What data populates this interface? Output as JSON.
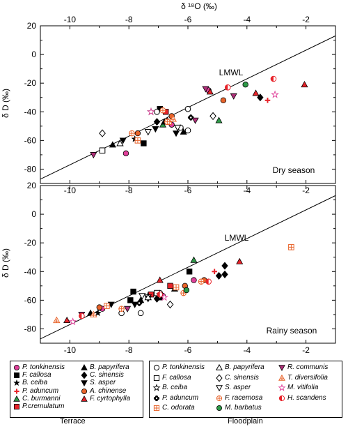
{
  "chart_data": [
    {
      "type": "scatter",
      "panel": "top",
      "xlabel": "δ ¹⁸O (‰)",
      "ylabel": "δ D (‰)",
      "xlim": [
        -11,
        -1
      ],
      "ylim": [
        -90,
        20
      ],
      "xticks": [
        "-10",
        "-8",
        "-6",
        "-4",
        "-2"
      ],
      "yticks": [
        "20",
        "0",
        "-20",
        "-40",
        "-60",
        "-80"
      ],
      "line_label": "LMWL",
      "season_label": "Dry season",
      "lmwl": {
        "slope": 10,
        "intercept": 23
      },
      "series": [
        {
          "name": "P. tonkinensis",
          "points": [
            [
              -8.1,
              -69
            ],
            [
              -6.55,
              -49
            ],
            [
              -5.3,
              -25
            ]
          ]
        },
        {
          "name": "F. callosa",
          "points": [
            [
              -7.5,
              -62
            ],
            [
              -6.95,
              -38
            ]
          ]
        },
        {
          "name": "B. ceiba",
          "points": [
            [
              -7.8,
              -59
            ]
          ]
        },
        {
          "name": "P. aduncum",
          "points": [
            [
              -3.3,
              -32
            ]
          ]
        },
        {
          "name": "C. burmanni",
          "points": [
            [
              -6.85,
              -49
            ],
            [
              -4.95,
              -46
            ]
          ]
        },
        {
          "name": "P.cremulatum",
          "points": [
            [
              -6.75,
              -40
            ]
          ]
        },
        {
          "name": "B. papyrifera",
          "points": [
            [
              -8.55,
              -63
            ],
            [
              -6.8,
              -47
            ],
            [
              -6.15,
              -54
            ]
          ]
        },
        {
          "name": "C. sinensis",
          "points": [
            [
              -7.05,
              -47
            ],
            [
              -3.55,
              -30
            ]
          ]
        },
        {
          "name": "S. asper",
          "points": [
            [
              -8.2,
              -60
            ],
            [
              -7.1,
              -52
            ],
            [
              -6.4,
              -55
            ]
          ]
        },
        {
          "name": "A. chinense",
          "points": [
            [
              -7.7,
              -55
            ],
            [
              -6.55,
              -43
            ],
            [
              -4.8,
              -32
            ]
          ]
        },
        {
          "name": "F. cyrtophylla",
          "points": [
            [
              -6.7,
              -46
            ],
            [
              -5.25,
              -26
            ],
            [
              -3.7,
              -27
            ],
            [
              -2.05,
              -21
            ]
          ]
        },
        {
          "name": "P. tonkinensis (Floodplain)",
          "points": [
            [
              -7.05,
              -40
            ],
            [
              -6.25,
              -51
            ],
            [
              -6.0,
              -38
            ],
            [
              -6.0,
              -53
            ]
          ]
        },
        {
          "name": "F. callosa (Floodplain)",
          "points": [
            [
              -8.9,
              -67
            ]
          ]
        },
        {
          "name": "B. ceiba (Floodplain)",
          "points": [
            [
              -7.25,
              -40
            ]
          ]
        },
        {
          "name": "P. aduncum (Floodplain)",
          "points": [
            [
              -5.9,
              -44
            ]
          ]
        },
        {
          "name": "C. odorata",
          "points": [
            [
              -7.7,
              -60
            ],
            [
              -6.65,
              -47
            ]
          ]
        },
        {
          "name": "B. papyrifera (Floodplain)",
          "points": [
            [
              -8.3,
              -62
            ]
          ]
        },
        {
          "name": "C. sinensis (Floodplain)",
          "points": [
            [
              -8.9,
              -55
            ],
            [
              -5.15,
              -43
            ]
          ]
        },
        {
          "name": "S. asper (Floodplain)",
          "points": [
            [
              -7.35,
              -54
            ],
            [
              -6.35,
              -51
            ]
          ]
        },
        {
          "name": "F. racemosa",
          "points": [
            [
              -7.9,
              -55
            ],
            [
              -6.85,
              -39
            ],
            [
              -6.7,
              -47
            ]
          ]
        },
        {
          "name": "M. barbatus",
          "points": [
            [
              -4.05,
              -21
            ]
          ]
        },
        {
          "name": "R. communis",
          "points": [
            [
              -9.2,
              -70
            ],
            [
              -5.4,
              -24
            ],
            [
              -5.75,
              -46
            ],
            [
              -4.45,
              -29
            ]
          ]
        },
        {
          "name": "T. diversifolia",
          "points": [
            [
              -6.5,
              -45
            ]
          ]
        },
        {
          "name": "M. vitifolia",
          "points": [
            [
              -7.25,
              -40
            ],
            [
              -3.05,
              -28
            ]
          ]
        },
        {
          "name": "H. scandens",
          "points": [
            [
              -4.65,
              -23
            ],
            [
              -3.1,
              -17
            ]
          ]
        }
      ]
    },
    {
      "type": "scatter",
      "panel": "bottom",
      "xlabel": "",
      "ylabel": "δ D (‰)",
      "xlim": [
        -11,
        -1
      ],
      "ylim": [
        -90,
        20
      ],
      "xticks": [
        "-10",
        "-8",
        "-6",
        "-4",
        "-2"
      ],
      "yticks": [
        "20",
        "0",
        "-20",
        "-40",
        "-60",
        "-80"
      ],
      "line_label": "LMWL",
      "season_label": "Rainy season",
      "lmwl": {
        "slope": 10,
        "intercept": 23
      },
      "series": [
        {
          "name": "P. tonkinensis",
          "points": [
            [
              -8.9,
              -66
            ],
            [
              -6.85,
              -57
            ],
            [
              -5.8,
              -46
            ]
          ]
        },
        {
          "name": "F. callosa",
          "points": [
            [
              -7.95,
              -60
            ],
            [
              -7.85,
              -54
            ],
            [
              -6.95,
              -58
            ],
            [
              -5.95,
              -40
            ]
          ]
        },
        {
          "name": "B. ceiba",
          "points": [
            [
              -9.05,
              -69
            ]
          ]
        },
        {
          "name": "P. aduncum",
          "points": [
            [
              -5.1,
              -40
            ]
          ]
        },
        {
          "name": "C. burmanni",
          "points": [
            [
              -5.8,
              -32
            ]
          ]
        },
        {
          "name": "P.cremulatum",
          "points": [
            [
              -7.25,
              -56
            ],
            [
              -6.6,
              -50
            ]
          ]
        },
        {
          "name": "B. papyrifera",
          "points": [
            [
              -9.3,
              -69
            ],
            [
              -7.6,
              -60
            ],
            [
              -6.45,
              -52
            ]
          ]
        },
        {
          "name": "C. sinensis",
          "points": [
            [
              -7.05,
              -59
            ],
            [
              -4.75,
              -36
            ],
            [
              -4.95,
              -43
            ],
            [
              -4.75,
              -42
            ]
          ]
        },
        {
          "name": "S. asper",
          "points": [
            [
              -8.6,
              -63
            ],
            [
              -7.8,
              -63
            ],
            [
              -7.35,
              -59
            ]
          ]
        },
        {
          "name": "A. chinense",
          "points": [
            [
              -9.0,
              -65
            ],
            [
              -6.1,
              -50
            ],
            [
              -5.45,
              -46
            ]
          ]
        },
        {
          "name": "F. cyrtophylla",
          "points": [
            [
              -10.1,
              -74
            ],
            [
              -6.95,
              -46
            ],
            [
              -4.25,
              -33
            ]
          ]
        },
        {
          "name": "P. tonkinensis (Floodplain)",
          "points": [
            [
              -8.25,
              -69
            ],
            [
              -7.6,
              -69
            ],
            [
              -6.95,
              -55
            ]
          ]
        },
        {
          "name": "F. callosa (Floodplain)",
          "points": [
            [
              -7.05,
              -55
            ]
          ]
        },
        {
          "name": "B. ceiba (Floodplain)",
          "points": [
            [
              -7.35,
              -57
            ]
          ]
        },
        {
          "name": "P. aduncum (Floodplain)",
          "points": [
            [
              -7.65,
              -62
            ]
          ]
        },
        {
          "name": "C. odorata",
          "points": [
            [
              -8.75,
              -64
            ],
            [
              -6.4,
              -51
            ],
            [
              -2.5,
              -23
            ]
          ]
        },
        {
          "name": "B. papyrifera (Floodplain)",
          "points": [
            [
              -7.35,
              -58
            ]
          ]
        },
        {
          "name": "C. sinensis (Floodplain)",
          "points": [
            [
              -6.6,
              -63
            ]
          ]
        },
        {
          "name": "S. asper (Floodplain)",
          "points": [
            [
              -7.55,
              -57
            ],
            [
              -6.95,
              -57
            ]
          ]
        },
        {
          "name": "F. racemosa",
          "points": [
            [
              -8.25,
              -66
            ],
            [
              -6.15,
              -55
            ],
            [
              -5.55,
              -47
            ]
          ]
        },
        {
          "name": "M. barbatus",
          "points": [
            [
              -6.05,
              -53
            ]
          ]
        },
        {
          "name": "R. communis",
          "points": [
            [
              -9.6,
              -70
            ],
            [
              -8.05,
              -66
            ]
          ]
        },
        {
          "name": "T. diversifolia",
          "points": [
            [
              -10.45,
              -74
            ],
            [
              -9.2,
              -70
            ]
          ]
        },
        {
          "name": "M. vitifolia",
          "points": [
            [
              -9.9,
              -75
            ],
            [
              -6.8,
              -58
            ]
          ]
        },
        {
          "name": "H. scandens",
          "points": [
            [
              -9.6,
              -71
            ],
            [
              -6.95,
              -56
            ],
            [
              -5.3,
              -47
            ]
          ]
        }
      ]
    }
  ],
  "legend": {
    "terrace_label": "Terrace",
    "floodplain_label": "Floodplain",
    "terrace": [
      {
        "label": "P. tonkinensis",
        "marker": "circle",
        "fill": "#e0409a"
      },
      {
        "label": "F. callosa",
        "marker": "square",
        "fill": "#000000"
      },
      {
        "label": "B. ceiba",
        "marker": "star",
        "fill": "#000000"
      },
      {
        "label": "P. aduncum",
        "marker": "cross",
        "fill": "#e8232a"
      },
      {
        "label": "C. burmanni",
        "marker": "triangle",
        "fill": "#2e9a48"
      },
      {
        "label": "P.cremulatum",
        "marker": "square",
        "fill": "#e8232a"
      },
      {
        "label": "B. papyrifera",
        "marker": "triangle",
        "fill": "#000000"
      },
      {
        "label": "C. sinensis",
        "marker": "diamond",
        "fill": "#000000"
      },
      {
        "label": "S. asper",
        "marker": "tri-down",
        "fill": "#000000"
      },
      {
        "label": "A. chinense",
        "marker": "circle",
        "fill": "#e8632a"
      },
      {
        "label": "F. cyrtophylla",
        "marker": "triangle",
        "fill": "#e8232a"
      }
    ],
    "floodplain": [
      {
        "label": "P. tonkinensis",
        "marker": "circle-open",
        "fill": "#000000"
      },
      {
        "label": "F. callosa",
        "marker": "square-open",
        "fill": "#000000"
      },
      {
        "label": "B. ceiba",
        "marker": "star-open",
        "fill": "#000000"
      },
      {
        "label": "P. aduncum",
        "marker": "flower",
        "fill": "#000000"
      },
      {
        "label": "C. odorata",
        "marker": "square-plus",
        "fill": "#e8632a"
      },
      {
        "label": "B. papyrifera",
        "marker": "triangle-open",
        "fill": "#000000"
      },
      {
        "label": "C. sinensis",
        "marker": "diamond-open",
        "fill": "#000000"
      },
      {
        "label": "S. asper",
        "marker": "tri-down-open",
        "fill": "#000000"
      },
      {
        "label": "F. racemosa",
        "marker": "circle-plus",
        "fill": "#e8632a"
      },
      {
        "label": "M. barbatus",
        "marker": "circle",
        "fill": "#2e9a48"
      },
      {
        "label": "R. communis",
        "marker": "tri-down",
        "fill": "#b0307a"
      },
      {
        "label": "T. diversifolia",
        "marker": "triangle-cross",
        "fill": "#e8632a"
      },
      {
        "label": "M. vitifolia",
        "marker": "star-open",
        "fill": "#e0409a"
      },
      {
        "label": "H. scandens",
        "marker": "circle-half",
        "fill": "#e8232a"
      }
    ]
  }
}
